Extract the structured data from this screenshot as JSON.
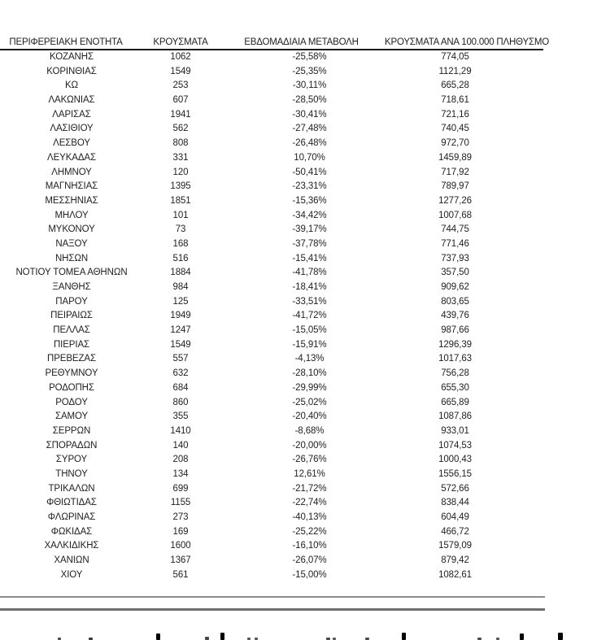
{
  "chart_data": {
    "type": "table",
    "title": "",
    "columns": [
      "ΠΕΡΙΦΕΡΕΙΑΚΗ ΕΝΟΤΗΤΑ",
      "ΚΡΟΥΣΜΑΤΑ",
      "ΕΒΔΟΜΑΔΙΑΙΑ ΜΕΤΑΒΟΛΗ",
      "ΚΡΟΥΣΜΑΤΑ ΑΝΑ 100.000 ΠΛΗΘΥΣΜΟ"
    ],
    "rows": [
      [
        "ΚΟΖΑΝΗΣ",
        "1062",
        "-25,58%",
        "774,05"
      ],
      [
        "ΚΟΡΙΝΘΙΑΣ",
        "1549",
        "-25,35%",
        "1121,29"
      ],
      [
        "ΚΩ",
        "253",
        "-30,11%",
        "665,28"
      ],
      [
        "ΛΑΚΩΝΙΑΣ",
        "607",
        "-28,50%",
        "718,61"
      ],
      [
        "ΛΑΡΙΣΑΣ",
        "1941",
        "-30,41%",
        "721,16"
      ],
      [
        "ΛΑΣΙΘΙΟΥ",
        "562",
        "-27,48%",
        "740,45"
      ],
      [
        "ΛΕΣΒΟΥ",
        "808",
        "-26,48%",
        "972,70"
      ],
      [
        "ΛΕΥΚΑΔΑΣ",
        "331",
        "10,70%",
        "1459,89"
      ],
      [
        "ΛΗΜΝΟΥ",
        "120",
        "-50,41%",
        "717,92"
      ],
      [
        "ΜΑΓΝΗΣΙΑΣ",
        "1395",
        "-23,31%",
        "789,97"
      ],
      [
        "ΜΕΣΣΗΝΙΑΣ",
        "1851",
        "-15,36%",
        "1277,26"
      ],
      [
        "ΜΗΛΟΥ",
        "101",
        "-34,42%",
        "1007,68"
      ],
      [
        "ΜΥΚΟΝΟΥ",
        "73",
        "-39,17%",
        "744,75"
      ],
      [
        "ΝΑΞΟΥ",
        "168",
        "-37,78%",
        "771,46"
      ],
      [
        "ΝΗΣΩΝ",
        "516",
        "-15,41%",
        "737,93"
      ],
      [
        "ΝΟΤΙΟΥ ΤΟΜΕΑ ΑΘΗΝΩΝ",
        "1884",
        "-41,78%",
        "357,50"
      ],
      [
        "ΞΑΝΘΗΣ",
        "984",
        "-18,41%",
        "909,62"
      ],
      [
        "ΠΑΡΟΥ",
        "125",
        "-33,51%",
        "803,65"
      ],
      [
        "ΠΕΙΡΑΙΩΣ",
        "1949",
        "-41,72%",
        "439,76"
      ],
      [
        "ΠΕΛΛΑΣ",
        "1247",
        "-15,05%",
        "987,66"
      ],
      [
        "ΠΙΕΡΙΑΣ",
        "1549",
        "-15,91%",
        "1296,39"
      ],
      [
        "ΠΡΕΒΕΖΑΣ",
        "557",
        "-4,13%",
        "1017,63"
      ],
      [
        "ΡΕΘΥΜΝΟΥ",
        "632",
        "-28,10%",
        "756,28"
      ],
      [
        "ΡΟΔΟΠΗΣ",
        "684",
        "-29,99%",
        "655,30"
      ],
      [
        "ΡΟΔΟΥ",
        "860",
        "-25,02%",
        "665,89"
      ],
      [
        "ΣΑΜΟΥ",
        "355",
        "-20,40%",
        "1087,86"
      ],
      [
        "ΣΕΡΡΩΝ",
        "1410",
        "-8,68%",
        "933,01"
      ],
      [
        "ΣΠΟΡΑΔΩΝ",
        "140",
        "-20,00%",
        "1074,53"
      ],
      [
        "ΣΥΡΟΥ",
        "208",
        "-26,76%",
        "1000,43"
      ],
      [
        "ΤΗΝΟΥ",
        "134",
        "12,61%",
        "1556,15"
      ],
      [
        "ΤΡΙΚΑΛΩΝ",
        "699",
        "-21,72%",
        "572,66"
      ],
      [
        "ΦΘΙΩΤΙΔΑΣ",
        "1155",
        "-22,74%",
        "838,44"
      ],
      [
        "ΦΛΩΡΙΝΑΣ",
        "273",
        "-40,13%",
        "604,49"
      ],
      [
        "ΦΩΚΙΔΑΣ",
        "169",
        "-25,22%",
        "466,72"
      ],
      [
        "ΧΑΛΚΙΔΙΚΗΣ",
        "1600",
        "-16,10%",
        "1579,09"
      ],
      [
        "ΧΑΝΙΩΝ",
        "1367",
        "-26,07%",
        "879,42"
      ],
      [
        "ΧΙΟΥ",
        "561",
        "-15,00%",
        "1082,61"
      ]
    ]
  },
  "colors": {
    "text": "#1f1f1f",
    "header_rule": "#1a1a1a",
    "divider_top": "#8a8a8a",
    "divider_bottom": "#6f6f6f",
    "background": "#ffffff"
  }
}
